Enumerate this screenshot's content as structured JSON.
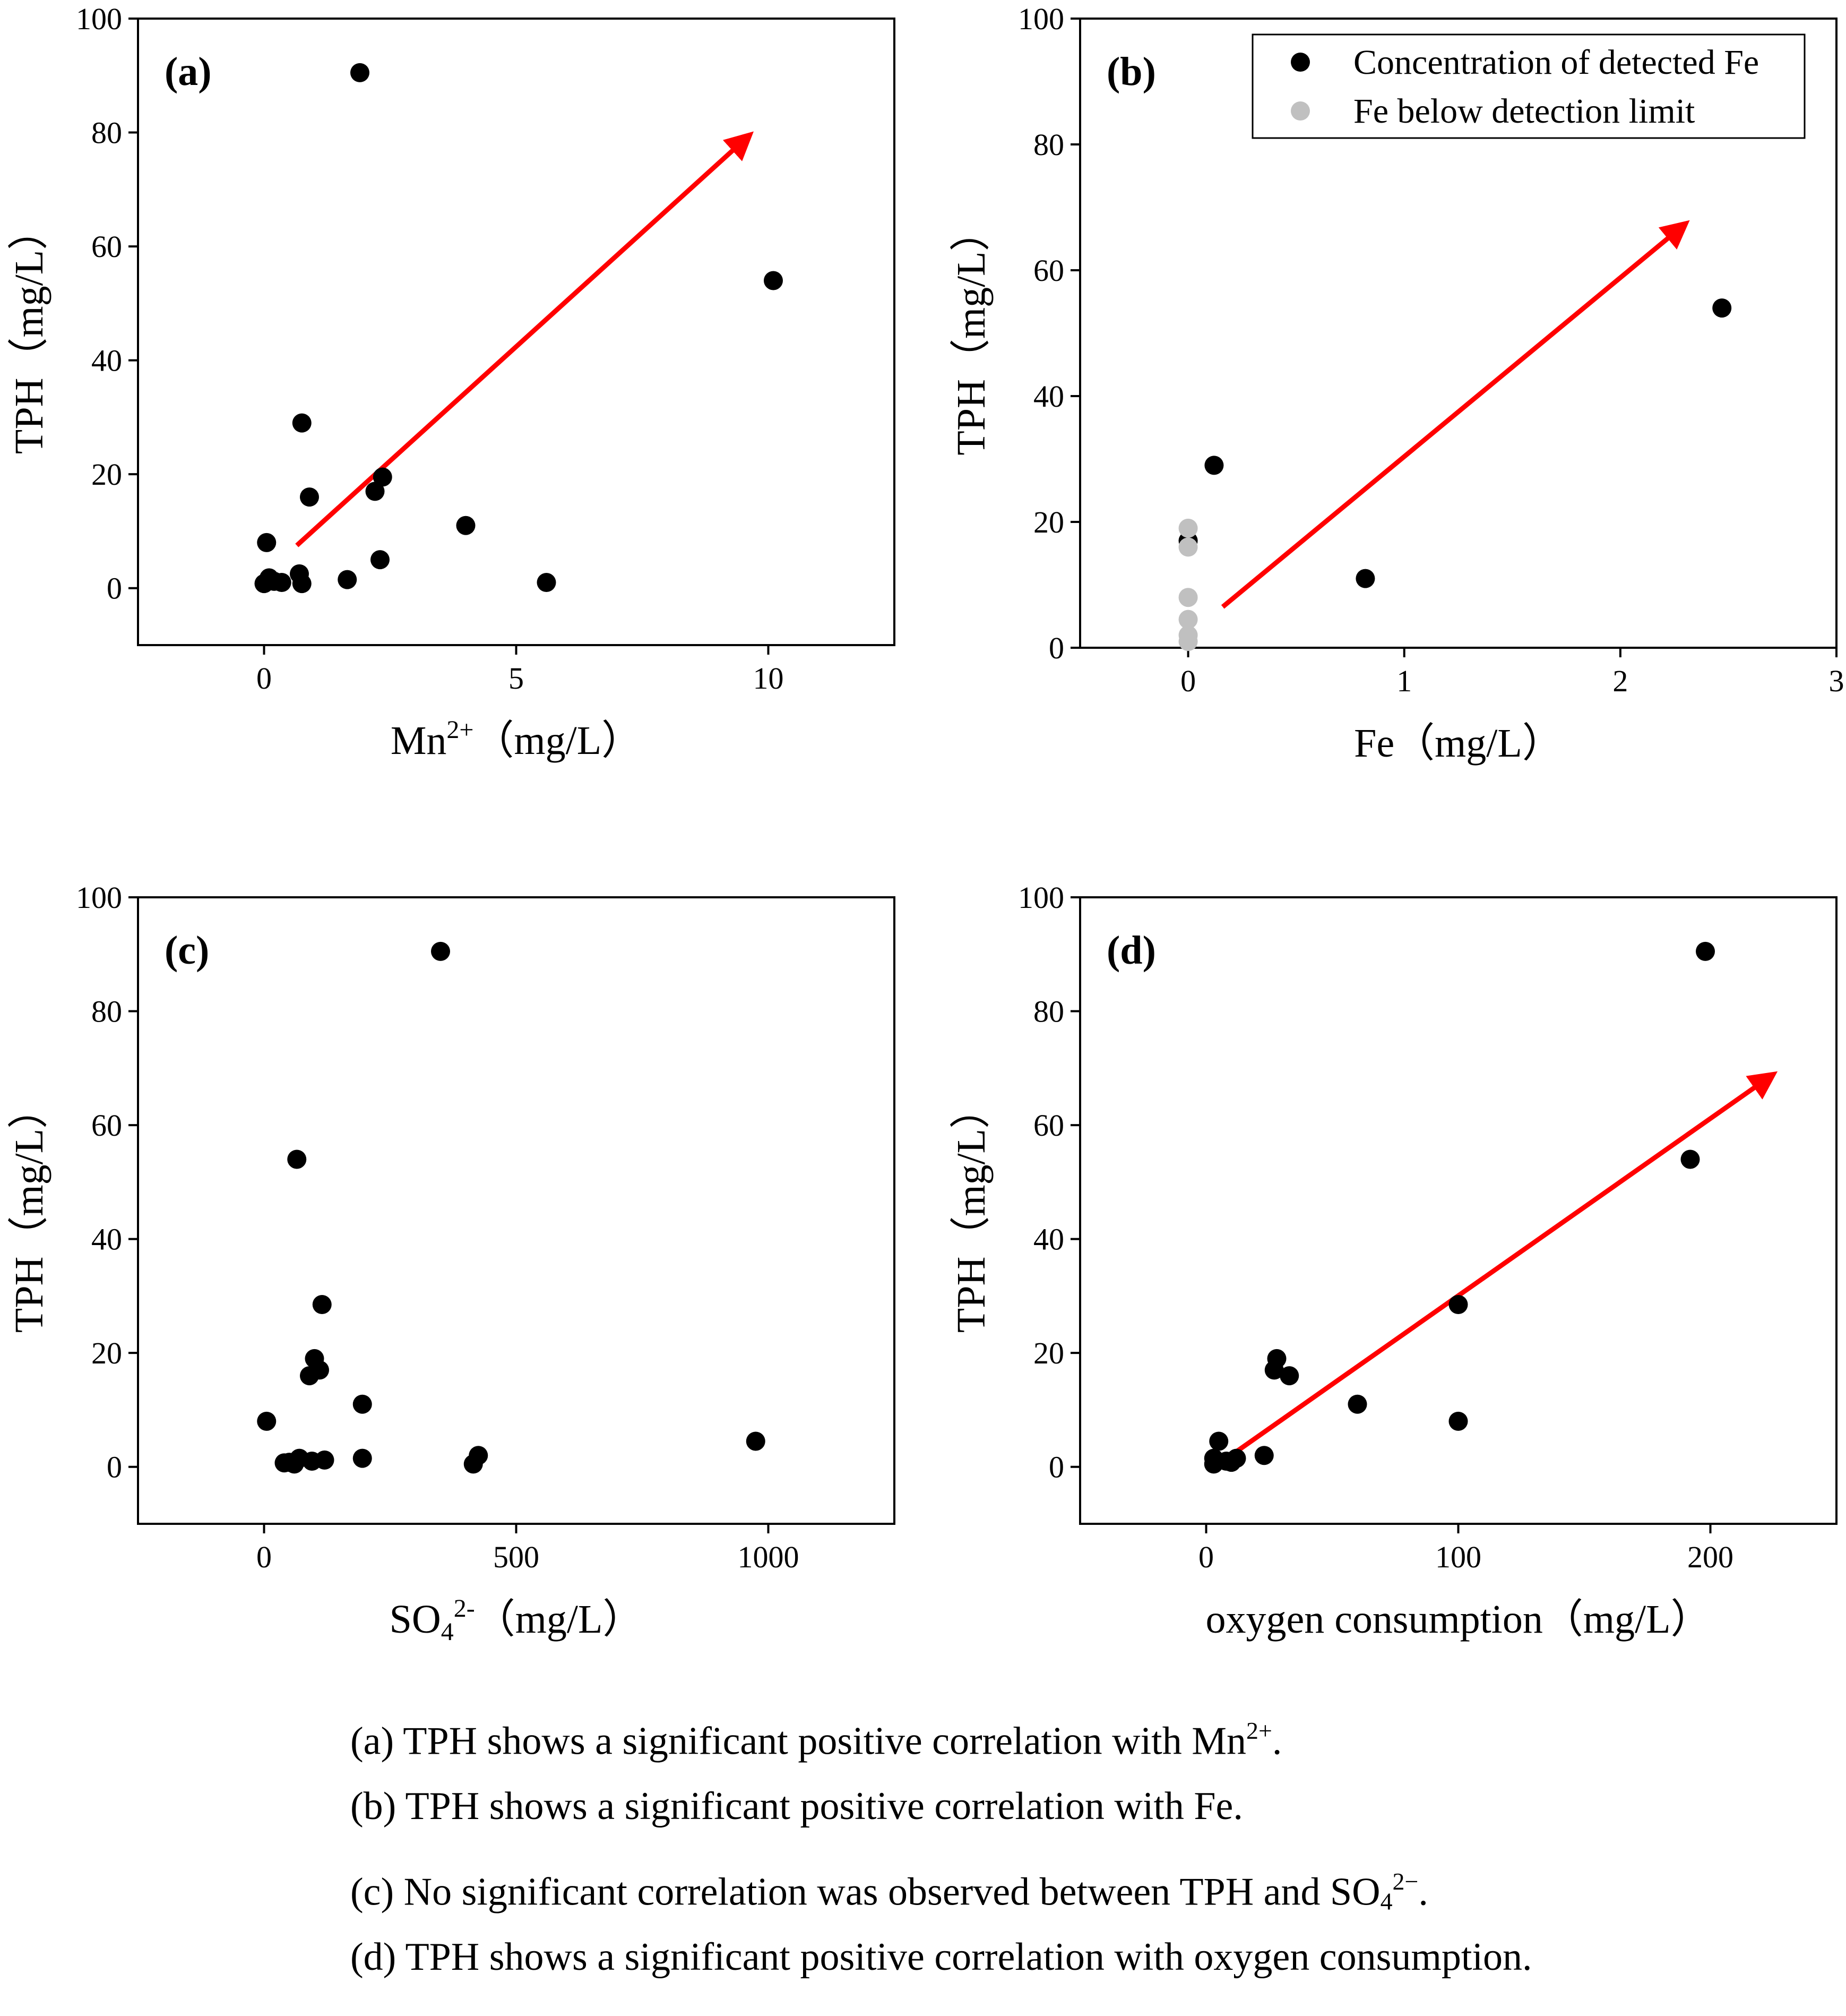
{
  "chart_data": [
    {
      "type": "scatter",
      "panel_label": "(a)",
      "xlabel_parts": [
        {
          "t": "Mn"
        },
        {
          "t": "2+",
          "sup": true
        },
        {
          "t": "（mg/L）"
        }
      ],
      "ylabel": "TPH（mg/L）",
      "xlim": [
        -2.5,
        12.5
      ],
      "ylim": [
        -10,
        100
      ],
      "xticks": [
        0,
        5,
        10
      ],
      "yticks": [
        0,
        20,
        40,
        60,
        80,
        100
      ],
      "series": [
        {
          "color": "#000000",
          "x": [
            1.9,
            10.1,
            0.75,
            0.9,
            2.35,
            2.2,
            4.0,
            0.05,
            2.3,
            0.7,
            1.65,
            5.6,
            0.75,
            0.1,
            0.0,
            0.2,
            0.35
          ],
          "y": [
            90.5,
            54,
            29,
            16,
            19.5,
            17,
            11,
            8,
            5,
            2.5,
            1.5,
            1,
            0.8,
            1.8,
            0.8,
            1.2,
            1.0
          ]
        }
      ],
      "arrow": {
        "from": [
          0.65,
          7.5
        ],
        "to": [
          9.5,
          78.5
        ],
        "color": "#ff0000"
      }
    },
    {
      "type": "scatter",
      "panel_label": "(b)",
      "xlabel_parts": [
        {
          "t": "Fe（mg/L）"
        }
      ],
      "ylabel": "TPH（mg/L）",
      "xlim": [
        -0.5,
        3.0
      ],
      "ylim": [
        0,
        100
      ],
      "xticks": [
        0,
        1,
        2,
        3
      ],
      "yticks": [
        0,
        20,
        40,
        60,
        80,
        100
      ],
      "legend": {
        "position": "top-right",
        "entries": [
          "Concentration of detected Fe",
          "Fe below detection limit"
        ],
        "colors": [
          "#000000",
          "#c0c0c0"
        ]
      },
      "series": [
        {
          "name": "Concentration of detected Fe",
          "color": "#000000",
          "x": [
            2.47,
            0.12,
            0.82,
            0.0
          ],
          "y": [
            54,
            29,
            11,
            17
          ]
        },
        {
          "name": "Fe below detection limit",
          "color": "#c0c0c0",
          "x": [
            0,
            0,
            0,
            0,
            0,
            0
          ],
          "y": [
            19,
            16,
            8,
            4.5,
            2,
            1
          ]
        }
      ],
      "arrow": {
        "from": [
          0.16,
          6.5
        ],
        "to": [
          2.27,
          66.5
        ],
        "color": "#ff0000"
      }
    },
    {
      "type": "scatter",
      "panel_label": "(c)",
      "xlabel_parts": [
        {
          "t": "SO"
        },
        {
          "t": "4",
          "sub": true
        },
        {
          "t": "2-",
          "sup": true
        },
        {
          "t": "（mg/L）"
        }
      ],
      "ylabel": "TPH（mg/L）",
      "xlim": [
        -250,
        1250
      ],
      "ylim": [
        -10,
        100
      ],
      "xticks": [
        0,
        500,
        1000
      ],
      "yticks": [
        0,
        20,
        40,
        60,
        80,
        100
      ],
      "series": [
        {
          "color": "#000000",
          "x": [
            350,
            65,
            115,
            100,
            110,
            90,
            195,
            5,
            975,
            425,
            195,
            415,
            120,
            95,
            70,
            50,
            60,
            40
          ],
          "y": [
            90.5,
            54,
            28.5,
            19,
            17,
            16,
            11,
            8,
            4.5,
            2,
            1.5,
            0.5,
            1.2,
            1.0,
            1.5,
            0.8,
            0.5,
            0.7
          ]
        }
      ]
    },
    {
      "type": "scatter",
      "panel_label": "(d)",
      "xlabel_parts": [
        {
          "t": "oxygen consumption（mg/L）"
        }
      ],
      "ylabel": "TPH（mg/L）",
      "xlim": [
        -50,
        250
      ],
      "ylim": [
        -10,
        100
      ],
      "xticks": [
        0,
        100,
        200
      ],
      "yticks": [
        0,
        20,
        40,
        60,
        80,
        100
      ],
      "series": [
        {
          "color": "#000000",
          "x": [
            198,
            192,
            100,
            28,
            27,
            33,
            60,
            100,
            5,
            23,
            12,
            8,
            3,
            3,
            10
          ],
          "y": [
            90.5,
            54,
            28.5,
            19,
            17,
            16,
            11,
            8,
            4.5,
            2,
            1.5,
            1.0,
            1.5,
            0.5,
            0.8
          ]
        }
      ],
      "arrow": {
        "from": [
          5,
          0.5
        ],
        "to": [
          222,
          68
        ],
        "color": "#ff0000"
      }
    }
  ],
  "captions": [
    [
      {
        "t": "(a) TPH shows a significant positive correlation with Mn"
      },
      {
        "t": "2+",
        "sup": true
      },
      {
        "t": "."
      }
    ],
    [
      {
        "t": "(b) TPH shows a significant positive correlation with Fe."
      }
    ],
    [
      {
        "t": "(c) No significant correlation was observed between TPH and SO"
      },
      {
        "t": "4",
        "sub": true
      },
      {
        "t": "2−",
        "sup": true
      },
      {
        "t": "."
      }
    ],
    [
      {
        "t": "(d) TPH shows a significant positive correlation with oxygen consumption."
      }
    ]
  ]
}
